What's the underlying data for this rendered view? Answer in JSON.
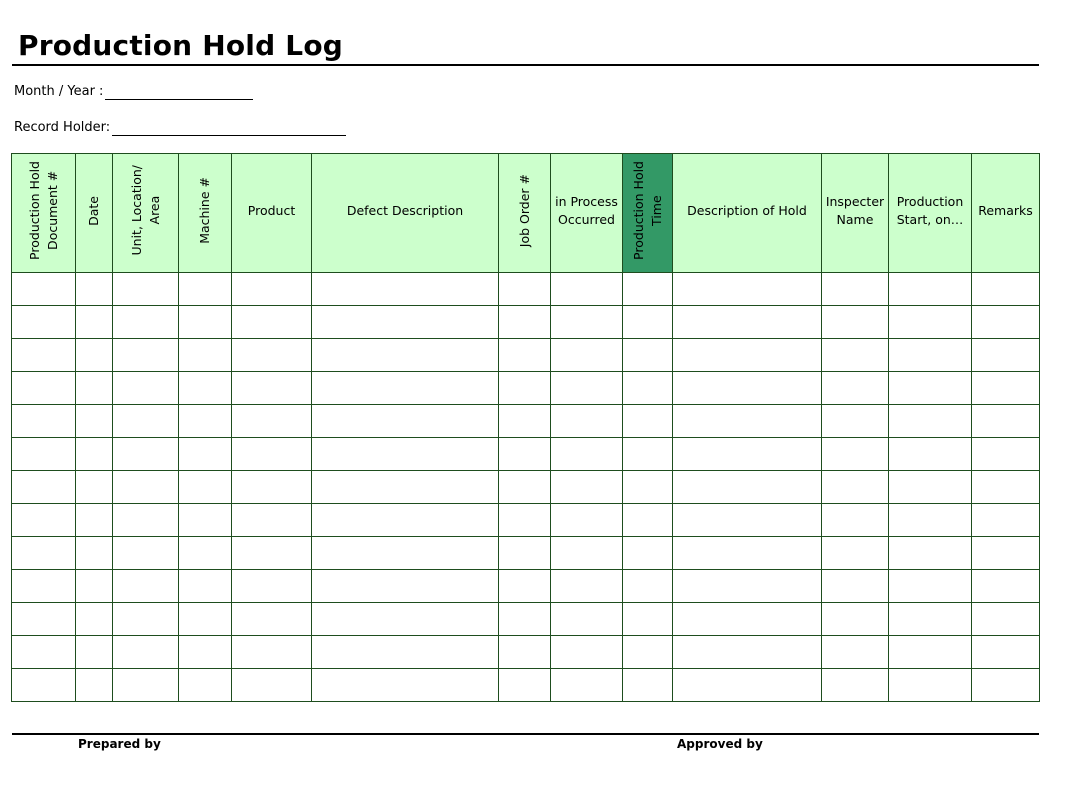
{
  "title": "Production Hold Log",
  "fields": {
    "month_year_label": "Month / Year :",
    "record_holder_label": "Record Holder:"
  },
  "table": {
    "columns": [
      {
        "label": "Production Hold\nDocument #",
        "orientation": "vertical"
      },
      {
        "label": "Date",
        "orientation": "vertical"
      },
      {
        "label": "Unit, Location/\nArea",
        "orientation": "vertical"
      },
      {
        "label": "Machine #",
        "orientation": "vertical"
      },
      {
        "label": "Product",
        "orientation": "horizontal"
      },
      {
        "label": "Defect Description",
        "orientation": "horizontal"
      },
      {
        "label": "Job Order #",
        "orientation": "vertical"
      },
      {
        "label": "in Process\nOccurred",
        "orientation": "horizontal"
      },
      {
        "label": "Production Hold\nTime",
        "orientation": "vertical",
        "highlight": true
      },
      {
        "label": "Description of Hold",
        "orientation": "horizontal"
      },
      {
        "label": "Inspecter\nName",
        "orientation": "horizontal"
      },
      {
        "label": "Production\nStart, on…",
        "orientation": "horizontal"
      },
      {
        "label": "Remarks",
        "orientation": "horizontal"
      }
    ],
    "row_count": 13
  },
  "signatures": {
    "prepared_by": "Prepared by",
    "approved_by": "Approved by"
  },
  "colors": {
    "header_fill": "#ccffcc",
    "header_highlight_fill": "#339966",
    "grid_line": "#1e4d1e"
  }
}
